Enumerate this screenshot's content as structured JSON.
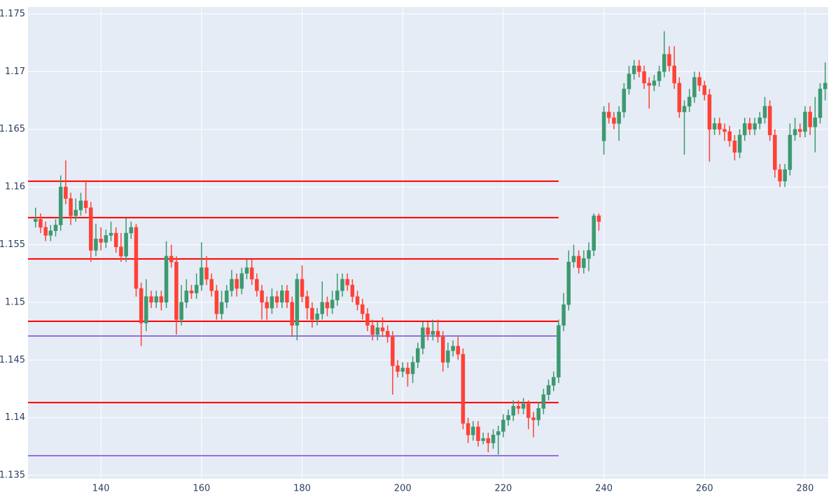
{
  "chart_data": {
    "type": "candlestick",
    "x": [
      127,
      128,
      129,
      130,
      131,
      132,
      133,
      134,
      135,
      136,
      137,
      138,
      139,
      140,
      141,
      142,
      143,
      144,
      145,
      146,
      147,
      148,
      149,
      150,
      151,
      152,
      153,
      154,
      155,
      156,
      157,
      158,
      159,
      160,
      161,
      162,
      163,
      164,
      165,
      166,
      167,
      168,
      169,
      170,
      171,
      172,
      173,
      174,
      175,
      176,
      177,
      178,
      179,
      180,
      181,
      182,
      183,
      184,
      185,
      186,
      187,
      188,
      189,
      190,
      191,
      192,
      193,
      194,
      195,
      196,
      197,
      198,
      199,
      200,
      201,
      202,
      203,
      204,
      205,
      206,
      207,
      208,
      209,
      210,
      211,
      212,
      213,
      214,
      215,
      216,
      217,
      218,
      219,
      220,
      221,
      222,
      223,
      224,
      225,
      226,
      227,
      228,
      229,
      230,
      231,
      232,
      233,
      234,
      235,
      236,
      237,
      238,
      239,
      240,
      241,
      242,
      243,
      244,
      245,
      246,
      247,
      248,
      249,
      250,
      251,
      252,
      253,
      254,
      255,
      256,
      257,
      258,
      259,
      260,
      261,
      262,
      263,
      264,
      265,
      266,
      267,
      268,
      269,
      270,
      271,
      272,
      273,
      274,
      275,
      276,
      277,
      278,
      279,
      280,
      281,
      282,
      283,
      284
    ],
    "open": [
      1.157,
      1.1572,
      1.1565,
      1.1558,
      1.1562,
      1.1567,
      1.16,
      1.159,
      1.1575,
      1.158,
      1.1588,
      1.1582,
      1.1545,
      1.1555,
      1.1552,
      1.1558,
      1.156,
      1.1548,
      1.154,
      1.156,
      1.1565,
      1.1512,
      1.1482,
      1.1505,
      1.15,
      1.1505,
      1.15,
      1.154,
      1.1535,
      1.1485,
      1.15,
      1.151,
      1.1508,
      1.1515,
      1.153,
      1.152,
      1.151,
      1.149,
      1.15,
      1.151,
      1.152,
      1.1512,
      1.1525,
      1.153,
      1.152,
      1.151,
      1.15,
      1.1495,
      1.1505,
      1.15,
      1.151,
      1.15,
      1.148,
      1.152,
      1.1505,
      1.1495,
      1.1485,
      1.149,
      1.15,
      1.1495,
      1.1502,
      1.151,
      1.152,
      1.1515,
      1.1505,
      1.1498,
      1.149,
      1.148,
      1.1472,
      1.1478,
      1.1475,
      1.147,
      1.1445,
      1.144,
      1.1443,
      1.1438,
      1.1448,
      1.146,
      1.1478,
      1.1472,
      1.1475,
      1.147,
      1.1448,
      1.1458,
      1.1462,
      1.1455,
      1.1395,
      1.1385,
      1.1392,
      1.138,
      1.1382,
      1.1378,
      1.1385,
      1.1388,
      1.1398,
      1.1402,
      1.141,
      1.1408,
      1.1412,
      1.14,
      1.1398,
      1.1408,
      1.142,
      1.1428,
      1.1435,
      1.148,
      1.1498,
      1.1535,
      1.154,
      1.153,
      1.1538,
      1.1545,
      1.1575,
      1.164,
      1.1665,
      1.166,
      1.1655,
      1.1665,
      1.1685,
      1.1698,
      1.1705,
      1.17,
      1.169,
      1.1688,
      1.1692,
      1.17,
      1.1715,
      1.1705,
      1.169,
      1.1665,
      1.167,
      1.1678,
      1.1695,
      1.1688,
      1.168,
      1.165,
      1.1655,
      1.165,
      1.1648,
      1.164,
      1.163,
      1.1645,
      1.1655,
      1.165,
      1.1655,
      1.166,
      1.167,
      1.1645,
      1.1615,
      1.1605,
      1.1615,
      1.1645,
      1.165,
      1.1648,
      1.1665,
      1.1652,
      1.166,
      1.1685
    ],
    "high": [
      1.1582,
      1.1577,
      1.157,
      1.1567,
      1.1572,
      1.161,
      1.1623,
      1.1595,
      1.159,
      1.1595,
      1.1606,
      1.1587,
      1.1568,
      1.1565,
      1.1563,
      1.157,
      1.1565,
      1.156,
      1.1573,
      1.157,
      1.1568,
      1.1517,
      1.152,
      1.151,
      1.151,
      1.151,
      1.1553,
      1.155,
      1.154,
      1.1515,
      1.152,
      1.1515,
      1.1525,
      1.1552,
      1.154,
      1.1525,
      1.1515,
      1.151,
      1.1515,
      1.1528,
      1.1525,
      1.153,
      1.1537,
      1.1537,
      1.1525,
      1.1515,
      1.1505,
      1.1512,
      1.151,
      1.1515,
      1.1515,
      1.1505,
      1.1525,
      1.1532,
      1.151,
      1.15,
      1.1495,
      1.1518,
      1.1505,
      1.151,
      1.1525,
      1.1525,
      1.1525,
      1.152,
      1.151,
      1.1503,
      1.1495,
      1.1485,
      1.1483,
      1.1487,
      1.148,
      1.1475,
      1.145,
      1.1448,
      1.1448,
      1.1453,
      1.1465,
      1.1483,
      1.1483,
      1.1485,
      1.1485,
      1.1475,
      1.1465,
      1.1467,
      1.147,
      1.146,
      1.14,
      1.1397,
      1.1397,
      1.1387,
      1.1387,
      1.139,
      1.1393,
      1.1403,
      1.1407,
      1.1415,
      1.1415,
      1.1417,
      1.1415,
      1.1405,
      1.1413,
      1.1425,
      1.1433,
      1.144,
      1.1485,
      1.1508,
      1.1545,
      1.155,
      1.1545,
      1.1545,
      1.1552,
      1.1577,
      1.1577,
      1.167,
      1.1673,
      1.1665,
      1.167,
      1.169,
      1.1705,
      1.171,
      1.171,
      1.1705,
      1.1695,
      1.1697,
      1.1705,
      1.1735,
      1.1722,
      1.1722,
      1.1695,
      1.1675,
      1.1685,
      1.17,
      1.17,
      1.1692,
      1.1685,
      1.166,
      1.166,
      1.1655,
      1.1653,
      1.1645,
      1.165,
      1.166,
      1.166,
      1.166,
      1.1665,
      1.1678,
      1.1675,
      1.165,
      1.162,
      1.162,
      1.1655,
      1.166,
      1.1655,
      1.167,
      1.167,
      1.1678,
      1.169,
      1.1708
    ],
    "low": [
      1.1565,
      1.156,
      1.1553,
      1.1553,
      1.1557,
      1.1562,
      1.1585,
      1.1567,
      1.157,
      1.1575,
      1.1577,
      1.1535,
      1.154,
      1.1545,
      1.1547,
      1.1553,
      1.1543,
      1.1535,
      1.1535,
      1.1555,
      1.1505,
      1.1462,
      1.1475,
      1.1495,
      1.1495,
      1.1493,
      1.1495,
      1.153,
      1.1472,
      1.148,
      1.1495,
      1.1503,
      1.1503,
      1.151,
      1.1515,
      1.1505,
      1.1485,
      1.1485,
      1.1495,
      1.1505,
      1.1505,
      1.1507,
      1.152,
      1.1515,
      1.1505,
      1.1485,
      1.1485,
      1.149,
      1.1495,
      1.1495,
      1.1495,
      1.147,
      1.1467,
      1.15,
      1.1485,
      1.1478,
      1.148,
      1.1485,
      1.1488,
      1.149,
      1.1497,
      1.1505,
      1.151,
      1.15,
      1.1493,
      1.1485,
      1.1475,
      1.1467,
      1.1467,
      1.147,
      1.1465,
      1.142,
      1.1435,
      1.1435,
      1.1427,
      1.143,
      1.1443,
      1.1455,
      1.1467,
      1.1467,
      1.1465,
      1.144,
      1.1443,
      1.1453,
      1.145,
      1.139,
      1.1378,
      1.138,
      1.1375,
      1.1377,
      1.137,
      1.1373,
      1.1368,
      1.1383,
      1.1393,
      1.1397,
      1.1403,
      1.1403,
      1.139,
      1.1383,
      1.1393,
      1.1403,
      1.1415,
      1.1423,
      1.143,
      1.1475,
      1.1493,
      1.153,
      1.1525,
      1.1525,
      1.1527,
      1.154,
      1.1562,
      1.1628,
      1.1655,
      1.165,
      1.164,
      1.166,
      1.168,
      1.1693,
      1.1695,
      1.1685,
      1.1668,
      1.1683,
      1.1687,
      1.1695,
      1.17,
      1.1685,
      1.166,
      1.1628,
      1.1665,
      1.1673,
      1.1683,
      1.1675,
      1.1622,
      1.1645,
      1.1645,
      1.164,
      1.1635,
      1.1623,
      1.1625,
      1.164,
      1.1645,
      1.1645,
      1.165,
      1.1655,
      1.164,
      1.1608,
      1.16,
      1.16,
      1.161,
      1.164,
      1.1643,
      1.1643,
      1.1645,
      1.163,
      1.1655,
      1.1675
    ],
    "close": [
      1.1572,
      1.1565,
      1.1558,
      1.1562,
      1.1567,
      1.16,
      1.159,
      1.1575,
      1.158,
      1.1588,
      1.1582,
      1.1545,
      1.1555,
      1.1552,
      1.1558,
      1.156,
      1.1548,
      1.154,
      1.156,
      1.1565,
      1.1512,
      1.1482,
      1.1505,
      1.15,
      1.1505,
      1.15,
      1.154,
      1.1535,
      1.1485,
      1.15,
      1.151,
      1.1508,
      1.1515,
      1.153,
      1.152,
      1.151,
      1.149,
      1.15,
      1.151,
      1.152,
      1.1512,
      1.1525,
      1.153,
      1.152,
      1.151,
      1.15,
      1.1495,
      1.1505,
      1.15,
      1.151,
      1.15,
      1.148,
      1.152,
      1.1505,
      1.1495,
      1.1485,
      1.149,
      1.15,
      1.1495,
      1.1502,
      1.151,
      1.152,
      1.1515,
      1.1505,
      1.1498,
      1.149,
      1.148,
      1.1472,
      1.1478,
      1.1475,
      1.147,
      1.1445,
      1.144,
      1.1443,
      1.1438,
      1.1448,
      1.146,
      1.1478,
      1.1472,
      1.1475,
      1.147,
      1.1448,
      1.1458,
      1.1462,
      1.1455,
      1.1395,
      1.1385,
      1.1392,
      1.138,
      1.1382,
      1.1378,
      1.1385,
      1.1388,
      1.1398,
      1.1402,
      1.141,
      1.1408,
      1.1412,
      1.14,
      1.1398,
      1.1408,
      1.142,
      1.1428,
      1.1435,
      1.148,
      1.1498,
      1.1535,
      1.154,
      1.153,
      1.1538,
      1.1545,
      1.1575,
      1.157,
      1.1665,
      1.166,
      1.1655,
      1.1665,
      1.1685,
      1.1698,
      1.1705,
      1.17,
      1.169,
      1.1688,
      1.1692,
      1.17,
      1.1715,
      1.1705,
      1.169,
      1.1665,
      1.167,
      1.1678,
      1.1695,
      1.1688,
      1.168,
      1.165,
      1.1655,
      1.165,
      1.1648,
      1.164,
      1.163,
      1.1645,
      1.1655,
      1.165,
      1.1655,
      1.166,
      1.167,
      1.1645,
      1.1615,
      1.1605,
      1.1615,
      1.1645,
      1.165,
      1.1648,
      1.1665,
      1.1652,
      1.166,
      1.1685,
      1.169
    ],
    "increasing_color": "#3d9970",
    "decreasing_color": "#ff4136",
    "lines": [
      {
        "y": 1.1605,
        "x": [
          125.5,
          231
        ],
        "color": "#ff0000"
      },
      {
        "y": 1.15734,
        "x": [
          125.5,
          231
        ],
        "color": "#ff0000"
      },
      {
        "y": 1.15376,
        "x": [
          125.5,
          231
        ],
        "color": "#ff0000"
      },
      {
        "y": 1.14835,
        "x": [
          125.5,
          231
        ],
        "color": "#ff0000"
      },
      {
        "y": 1.14708,
        "x": [
          125.5,
          231
        ],
        "color": "#9370db"
      },
      {
        "y": 1.14131,
        "x": [
          125.5,
          231
        ],
        "color": "#ff0000"
      },
      {
        "y": 1.1367,
        "x": [
          125.5,
          231
        ],
        "color": "#9370db"
      }
    ],
    "xlim": [
      125.5,
      284.6
    ],
    "ylim": [
      1.1347,
      1.1756
    ],
    "xticks": [
      140,
      160,
      180,
      200,
      220,
      240,
      260,
      280
    ],
    "yticks": [
      1.135,
      1.14,
      1.145,
      1.15,
      1.155,
      1.16,
      1.165,
      1.17,
      1.175
    ],
    "grid": true
  }
}
